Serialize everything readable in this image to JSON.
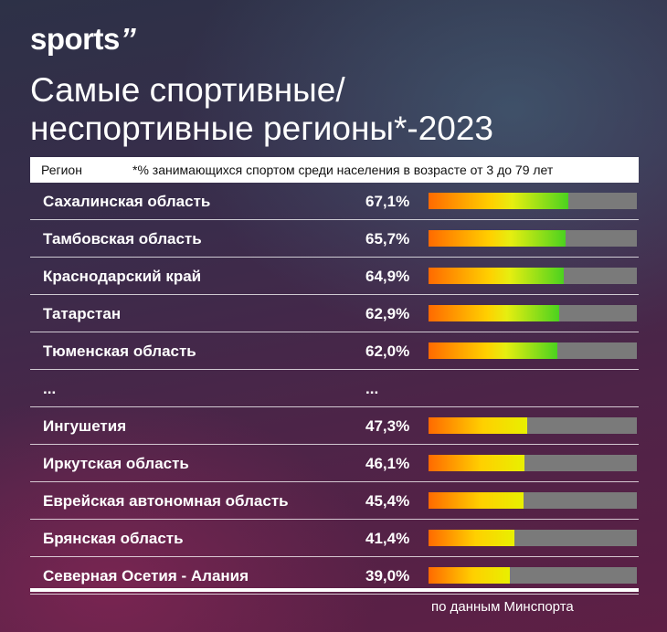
{
  "brand": {
    "logo_text": "sports",
    "logo_mark": "’’"
  },
  "title": {
    "line1": "Самые спортивные/",
    "line2_main": "неспортивные регионы",
    "line2_suffix": "*-2023"
  },
  "header": {
    "region_label": "Регион",
    "note": "*% занимающихся спортом среди населения в возрасте от 3 до 79 лет"
  },
  "colors": {
    "bar_track": "#7a7a7a",
    "gradient_start": "#ff6a00",
    "gradient_mid": "#ffd000",
    "gradient_end": "#4bd21f"
  },
  "chart_data": {
    "type": "bar",
    "orientation": "horizontal",
    "xlim": [
      0,
      100
    ],
    "categories": [
      "Сахалинская область",
      "Тамбовская область",
      "Краснодарский край",
      "Татарстан",
      "Тюменская область",
      "...",
      "Ингушетия",
      "Иркутская область",
      "Еврейская автономная область",
      "Брянская область",
      "Северная Осетия - Алания"
    ],
    "values": [
      67.1,
      65.7,
      64.9,
      62.9,
      62.0,
      null,
      47.3,
      46.1,
      45.4,
      41.4,
      39.0
    ],
    "labels": [
      "67,1%",
      "65,7%",
      "64,9%",
      "62,9%",
      "62,0%",
      "...",
      "47,3%",
      "46,1%",
      "45,4%",
      "41,4%",
      "39,0%"
    ]
  },
  "source": "по данным Минспорта"
}
